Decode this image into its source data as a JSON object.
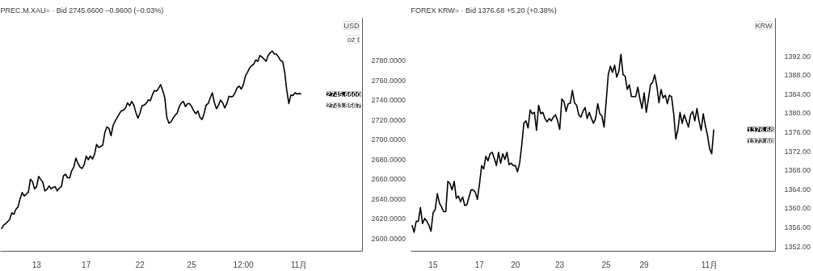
{
  "chart_data": [
    {
      "type": "line",
      "title": "PREC.M.XAU= · Bid    2745.6600  −0.9600 (−0.03%)",
      "categories": [
        null,
        null,
        null,
        null,
        null,
        null,
        null,
        null,
        null,
        null,
        null,
        null,
        null,
        null,
        null,
        null,
        null,
        "13",
        null,
        null,
        null,
        null,
        null,
        null,
        null,
        null,
        null,
        null,
        null,
        null,
        null,
        null,
        null,
        null,
        null,
        null,
        null,
        null,
        null,
        null,
        null,
        "17",
        null,
        null,
        null,
        null,
        null,
        null,
        null,
        null,
        null,
        null,
        null,
        null,
        null,
        null,
        null,
        null,
        null,
        null,
        null,
        null,
        null,
        null,
        null,
        null,
        null,
        "22",
        null,
        null,
        null,
        null,
        null,
        null,
        null,
        null,
        null,
        null,
        null,
        null,
        null,
        null,
        null,
        null,
        null,
        null,
        null,
        null,
        null,
        null,
        null,
        null,
        "25",
        null,
        null,
        null,
        null,
        null,
        null,
        null,
        null,
        null,
        null,
        null,
        null,
        null,
        null,
        null,
        null,
        null,
        null,
        null,
        null,
        null,
        null,
        null,
        null,
        "12:00",
        null,
        null,
        null,
        null,
        null,
        null,
        null,
        null,
        null,
        null,
        null,
        null,
        null,
        null,
        null,
        null,
        null,
        null,
        null,
        null,
        null,
        null,
        null,
        null,
        null,
        null,
        "11月",
        null
      ],
      "series": [
        {
          "color": "#000000",
          "values": [
            2609.6,
            2613.3,
            2614.8,
            2617,
            2619.2,
            2625.9,
            2624.4,
            2629.5,
            2631.8,
            2639.9,
            2646.5,
            2642.8,
            2645,
            2646.5,
            2659.8,
            2657.6,
            2650.2,
            2652.4,
            2662.7,
            2659.8,
            2656.8,
            2648,
            2649.5,
            2653.1,
            2650.2,
            2651.7,
            2652.4,
            2648,
            2651,
            2652.4,
            2663.5,
            2665,
            2661.3,
            2661.3,
            2668.6,
            2672.3,
            2681.2,
            2676,
            2672.3,
            2670.8,
            2674.5,
            2683.4,
            2679.7,
            2683.4,
            2680.4,
            2684.9,
            2695.2,
            2692.2,
            2693,
            2694.4,
            2707,
            2712.9,
            2711.4,
            2704,
            2714.4,
            2718.8,
            2722.5,
            2726.2,
            2729.1,
            2729.8,
            2732.1,
            2737.2,
            2734.3,
            2738.7,
            2735,
            2727.6,
            2721.7,
            2726.9,
            2734.3,
            2735,
            2736.5,
            2740.2,
            2739.4,
            2745.3,
            2749.8,
            2749,
            2752,
            2755.7,
            2749.8,
            2742.4,
            2722.5,
            2716.6,
            2718,
            2721.7,
            2724.7,
            2726.9,
            2733.5,
            2737.2,
            2738.7,
            2733.5,
            2736.5,
            2736.5,
            2733.5,
            2729.1,
            2726.2,
            2729.1,
            2722.5,
            2720.3,
            2726.2,
            2735,
            2736.5,
            2742.4,
            2747.5,
            2737.2,
            2731.3,
            2735,
            2740.2,
            2737.2,
            2732.1,
            2736.5,
            2743.9,
            2743.1,
            2743.9,
            2747.5,
            2752.7,
            2754.2,
            2751.2,
            2755.7,
            2764.5,
            2768.2,
            2772.6,
            2774.8,
            2776.3,
            2780.7,
            2779.3,
            2785.2,
            2783.7,
            2781.5,
            2779.3,
            2785.2,
            2788.1,
            2789.6,
            2786.6,
            2786.6,
            2783.7,
            2780,
            2779.3,
            2768.2,
            2749.8,
            2736.5,
            2745.3,
            2744.6,
            2747.5,
            2746.1,
            2746.8,
            2746.1
          ]
        }
      ],
      "ylim": [
        2587,
        2823
      ],
      "yticks": [
        {
          "value": 2600,
          "label": "2600.0000"
        },
        {
          "value": 2620,
          "label": "2620.0000"
        },
        {
          "value": 2640,
          "label": "2640.0000"
        },
        {
          "value": 2660,
          "label": "2660.0000"
        },
        {
          "value": 2680,
          "label": "2680.0000"
        },
        {
          "value": 2700,
          "label": "2700.0000"
        },
        {
          "value": 2720,
          "label": "2720.0000"
        },
        {
          "value": 2740,
          "label": "2740.0000"
        },
        {
          "value": 2760,
          "label": "2760.0000"
        },
        {
          "value": 2780,
          "label": "2780.0000"
        }
      ],
      "annotations": [
        "USD",
        "oz t",
        "2745.6600",
        "2743.8567"
      ]
    },
    {
      "type": "line",
      "title": "FOREX KRW= · Bid    1376.68  +5.20 (+0.38%)",
      "categories": [
        null,
        null,
        null,
        null,
        null,
        null,
        null,
        null,
        null,
        null,
        "15",
        null,
        null,
        null,
        null,
        null,
        null,
        null,
        null,
        null,
        null,
        null,
        null,
        null,
        null,
        null,
        null,
        null,
        null,
        null,
        null,
        null,
        "17",
        null,
        null,
        null,
        null,
        null,
        null,
        null,
        null,
        null,
        null,
        null,
        null,
        null,
        null,
        null,
        null,
        "20",
        null,
        null,
        null,
        null,
        null,
        null,
        null,
        null,
        null,
        null,
        null,
        null,
        null,
        null,
        null,
        null,
        null,
        null,
        null,
        null,
        "23",
        null,
        null,
        null,
        null,
        null,
        null,
        null,
        null,
        null,
        null,
        null,
        null,
        null,
        null,
        null,
        null,
        null,
        null,
        null,
        null,
        null,
        "25",
        null,
        null,
        null,
        null,
        null,
        null,
        null,
        null,
        null,
        null,
        null,
        null,
        null,
        null,
        null,
        null,
        null,
        "29",
        null,
        null,
        null,
        null,
        null,
        null,
        null,
        null,
        null,
        null,
        null,
        null,
        null,
        null,
        null,
        null,
        null,
        null,
        null,
        null,
        null,
        null,
        null,
        null,
        null,
        null,
        null,
        null,
        null,
        null,
        "11月",
        null,
        null
      ],
      "series": [
        {
          "color": "#000000",
          "values": [
            1356.5,
            1355,
            1357.3,
            1357.3,
            1360.2,
            1356.8,
            1357.9,
            1357.3,
            1356.5,
            1355.2,
            1359.1,
            1359.8,
            1363.1,
            1361.1,
            1360.3,
            1359.3,
            1359.3,
            1365.7,
            1365.2,
            1363.9,
            1365.7,
            1362.1,
            1362.6,
            1361.4,
            1362.4,
            1360.6,
            1360.8,
            1362.4,
            1363.9,
            1363.9,
            1363.4,
            1361.9,
            1365.2,
            1369,
            1368.3,
            1371,
            1370,
            1371.5,
            1371.8,
            1370.5,
            1369,
            1371.8,
            1369.5,
            1371.5,
            1370.3,
            1371.8,
            1369.2,
            1369.5,
            1369,
            1369,
            1367.7,
            1369.5,
            1373.3,
            1377.9,
            1378.4,
            1376.9,
            1380.7,
            1379.9,
            1380.2,
            1376.4,
            1381.7,
            1379.9,
            1380.2,
            1378.9,
            1378.2,
            1378.9,
            1378.4,
            1379.2,
            1379.7,
            1378.4,
            1376.6,
            1383,
            1382.5,
            1380.4,
            1382,
            1382.1,
            1384.8,
            1382.2,
            1381.7,
            1379.7,
            1379.2,
            1380.4,
            1381.2,
            1378.9,
            1380.2,
            1378.9,
            1377.9,
            1378.9,
            1382,
            1379.9,
            1379.4,
            1377.1,
            1382.5,
            1388.1,
            1389.9,
            1388.6,
            1390.1,
            1387.6,
            1388.8,
            1392.4,
            1388.1,
            1387.8,
            1385,
            1386,
            1383.5,
            1383.5,
            1383.5,
            1385.5,
            1383,
            1381,
            1384.3,
            1380.2,
            1383,
            1386,
            1386.5,
            1388.1,
            1385.8,
            1382.2,
            1385,
            1383.2,
            1383.8,
            1382,
            1383.8,
            1383.5,
            1379.9,
            1374.6,
            1376.6,
            1380.2,
            1377.9,
            1379.7,
            1378.4,
            1377.1,
            1379.7,
            1380.4,
            1378.4,
            1381,
            1378.4,
            1376.4,
            1379.9,
            1377.4,
            1375.4,
            1372.6,
            1371.5,
            1376.6
          ]
        }
      ],
      "ylim": [
        1351,
        1400
      ],
      "yticks": [
        {
          "value": 1352,
          "label": "1352.00"
        },
        {
          "value": 1356,
          "label": "1356.00"
        },
        {
          "value": 1360,
          "label": "1360.00"
        },
        {
          "value": 1364,
          "label": "1364.00"
        },
        {
          "value": 1368,
          "label": "1368.00"
        },
        {
          "value": 1372,
          "label": "1372.00"
        },
        {
          "value": 1376,
          "label": "1376.00"
        },
        {
          "value": 1380,
          "label": "1380.00"
        },
        {
          "value": 1384,
          "label": "1384.00"
        },
        {
          "value": 1388,
          "label": "1388.00"
        },
        {
          "value": 1392,
          "label": "1392.00"
        }
      ],
      "annotations": [
        "KRW",
        "1376.68",
        "1372.60"
      ]
    }
  ]
}
